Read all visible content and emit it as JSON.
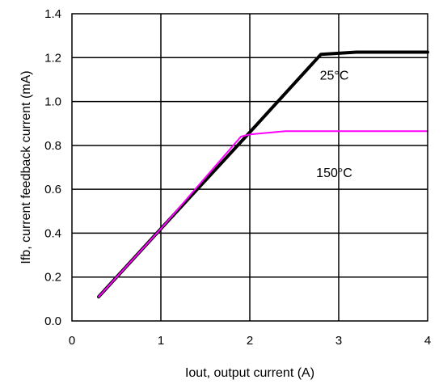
{
  "chart_data": {
    "type": "line",
    "xlabel": "Iout, output current (A)",
    "ylabel": "Ifb, current feedback current (mA)",
    "xlim": [
      0,
      4
    ],
    "ylim": [
      0,
      1.4
    ],
    "xticks": [
      "0",
      "1",
      "2",
      "3",
      "4"
    ],
    "yticks": [
      "0.0",
      "0.2",
      "0.4",
      "0.6",
      "0.8",
      "1.0",
      "1.2",
      "1.4"
    ],
    "grid": true,
    "series": [
      {
        "name": "25°C",
        "color": "#000000",
        "x": [
          0.3,
          1.0,
          2.0,
          2.8,
          3.0,
          3.2,
          4.0
        ],
        "y": [
          0.11,
          0.42,
          0.86,
          1.215,
          1.22,
          1.225,
          1.225
        ]
      },
      {
        "name": "150°C",
        "color": "#ff00ff",
        "x": [
          0.3,
          1.0,
          1.9,
          2.0,
          2.4,
          3.0,
          4.0
        ],
        "y": [
          0.11,
          0.42,
          0.84,
          0.85,
          0.865,
          0.865,
          0.865
        ]
      }
    ],
    "annotations": [
      {
        "text": "25°C",
        "x": 2.95,
        "y": 1.1
      },
      {
        "text": "150°C",
        "x": 2.95,
        "y": 0.655
      }
    ]
  }
}
